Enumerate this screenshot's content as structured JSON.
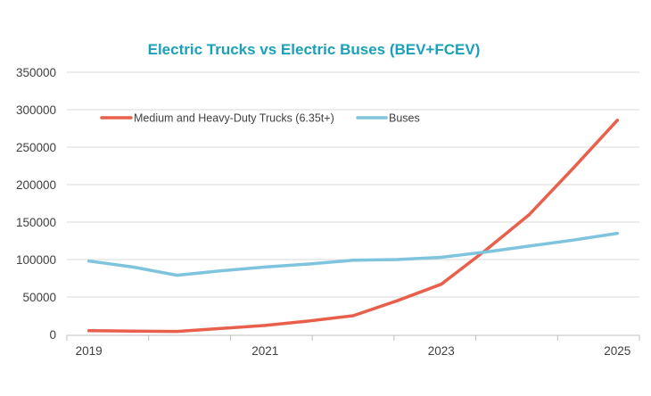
{
  "chart_data": {
    "type": "line",
    "title": "Electric Trucks vs Electric Buses (BEV+FCEV)",
    "xlabel": "",
    "ylabel": "",
    "x": [
      2019,
      2019.5,
      2020,
      2020.5,
      2021,
      2021.5,
      2022,
      2022.5,
      2023,
      2023.5,
      2024,
      2024.5,
      2025
    ],
    "x_tick_labels": [
      "2019",
      "2021",
      "2023",
      "2025"
    ],
    "y_tick_labels": [
      "0",
      "50000",
      "100000",
      "150000",
      "200000",
      "250000",
      "300000",
      "350000"
    ],
    "ylim": [
      0,
      350000
    ],
    "xlim": [
      2018.75,
      2025.25
    ],
    "grid": true,
    "legend_position": "top-left",
    "series": [
      {
        "name": "Medium and Heavy-Duty Trucks (6.35t+)",
        "color": "#e8604c",
        "values": [
          5000,
          4500,
          4000,
          8000,
          12000,
          18000,
          25000,
          45000,
          67000,
          112000,
          160000,
          222000,
          286000
        ]
      },
      {
        "name": "Buses",
        "color": "#7ec4dc",
        "values": [
          98000,
          90000,
          79000,
          85000,
          90000,
          94000,
          99000,
          100000,
          103000,
          110000,
          118000,
          126000,
          135000
        ]
      }
    ],
    "colors": {
      "title": "#1aa0b8",
      "grid": "#d9d9d9",
      "axis": "#bfbfbf",
      "tick_text": "#404040"
    }
  }
}
